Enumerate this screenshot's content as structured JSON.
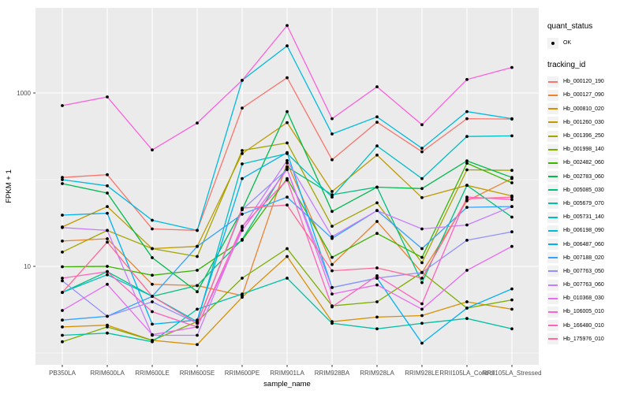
{
  "legend": {
    "quant_status_title": "quant_status",
    "ok_label": "OK",
    "tracking_id_title": "tracking_id"
  },
  "chart_data": {
    "type": "line",
    "title": "",
    "xlabel": "sample_name",
    "ylabel": "FPKM + 1",
    "y_scale": "log10",
    "y_ticks": [
      10,
      1000
    ],
    "y_minor": [
      1,
      100
    ],
    "ylim": [
      0.73,
      9500
    ],
    "grid": true,
    "legend_position": "right",
    "panel_color": "#ebebeb",
    "grid_color": "#ffffff",
    "point_color": "#000000",
    "quant_status": "OK",
    "categories": [
      "PB350LA",
      "RRIM600LA",
      "RRIM600LE",
      "RRIM600SE",
      "RRIM600PE",
      "RRIM901LA",
      "RRIM928BA",
      "RRIM928LA",
      "RRIM928LE",
      "RRII105LA_Control",
      "RRII105LA_Stressed"
    ],
    "series": [
      {
        "name": "Hb_000120_190",
        "color": "#F8766D",
        "values": [
          106,
          114,
          27,
          26,
          670,
          1500,
          170,
          460,
          210,
          505,
          500
        ]
      },
      {
        "name": "Hb_000127_090",
        "color": "#EA8331",
        "values": [
          19.6,
          20.8,
          6.2,
          6.0,
          4.6,
          156,
          10.5,
          33,
          8.5,
          57,
          103
        ]
      },
      {
        "name": "Hb_000810_020",
        "color": "#D89000",
        "values": [
          2.0,
          2.1,
          1.4,
          1.25,
          4.4,
          13,
          2.3,
          2.6,
          2.7,
          3.9,
          3.2
        ]
      },
      {
        "name": "Hb_001260_030",
        "color": "#C09B00",
        "values": [
          28.5,
          49,
          16,
          17,
          200,
          455,
          73,
          192,
          62,
          86,
          65
        ]
      },
      {
        "name": "Hb_001396_250",
        "color": "#A3A500",
        "values": [
          14.6,
          26,
          16,
          13,
          217,
          265,
          29,
          54,
          11,
          130,
          128
        ]
      },
      {
        "name": "Hb_001998_140",
        "color": "#7CAE00",
        "values": [
          1.35,
          2.0,
          1.4,
          2.3,
          7.3,
          16,
          3.5,
          3.9,
          8.5,
          3.3,
          4.1
        ]
      },
      {
        "name": "Hb_002482_060",
        "color": "#39B600",
        "values": [
          9.9,
          10,
          7.9,
          9.0,
          20,
          103,
          12.7,
          24,
          12.7,
          155,
          92
        ]
      },
      {
        "name": "Hb_002783_060",
        "color": "#00BB4E",
        "values": [
          90,
          70,
          12.6,
          5.1,
          45,
          610,
          43,
          82,
          79,
          165,
          106
        ]
      },
      {
        "name": "Hb_005085_030",
        "color": "#00BF7D",
        "values": [
          5.0,
          8.7,
          4.5,
          6.0,
          20.4,
          140,
          67,
          82,
          6.5,
          86,
          37
        ]
      },
      {
        "name": "Hb_005679_070",
        "color": "#00C1A3",
        "values": [
          1.6,
          1.7,
          1.35,
          3.2,
          4.8,
          7.3,
          2.2,
          1.9,
          2.2,
          2.5,
          1.9
        ]
      },
      {
        "name": "Hb_005731_140",
        "color": "#00BFC4",
        "values": [
          5.0,
          8.0,
          4.5,
          2.3,
          152,
          200,
          63,
          245,
          103,
          315,
          320
        ]
      },
      {
        "name": "Hb_006198_090",
        "color": "#00BAE0",
        "values": [
          100,
          85,
          34,
          26,
          1400,
          3500,
          337,
          530,
          230,
          610,
          505
        ]
      },
      {
        "name": "Hb_006487_060",
        "color": "#00B0F6",
        "values": [
          39,
          41,
          2.15,
          2.4,
          103,
          205,
          5.7,
          7.3,
          1.3,
          3.3,
          5.5
        ]
      },
      {
        "name": "Hb_007188_020",
        "color": "#35A2FF",
        "values": [
          2.4,
          2.65,
          4.5,
          17,
          40,
          63,
          21,
          44,
          16,
          48,
          49
        ]
      },
      {
        "name": "Hb_007763_050",
        "color": "#9590FF",
        "values": [
          6.8,
          2.65,
          3.9,
          2.2,
          45,
          131,
          5.7,
          7.3,
          8.5,
          20,
          25
        ]
      },
      {
        "name": "Hb_007763_060",
        "color": "#C77CFF",
        "values": [
          28,
          26,
          1.6,
          1.6,
          28,
          166,
          22,
          44,
          27,
          30,
          49
        ]
      },
      {
        "name": "Hb_010368_030",
        "color": "#E76BF3",
        "values": [
          3.1,
          6.2,
          1.63,
          2.0,
          26,
          131,
          4.8,
          6.1,
          3.2,
          9,
          17
        ]
      },
      {
        "name": "Hb_106005_010",
        "color": "#FA62DB",
        "values": [
          715,
          900,
          220,
          450,
          1400,
          6000,
          505,
          1180,
          430,
          1430,
          1970
        ]
      },
      {
        "name": "Hb_166480_010",
        "color": "#FF62BC",
        "values": [
          7.3,
          8.7,
          3.0,
          2.0,
          29,
          99,
          3.4,
          7.8,
          3.7,
          63,
          59
        ]
      },
      {
        "name": "Hb_175976_010",
        "color": "#FF6A98",
        "values": [
          5.0,
          19,
          4.5,
          2.2,
          47,
          51,
          8.9,
          9.6,
          7.3,
          60,
          63
        ]
      }
    ]
  }
}
